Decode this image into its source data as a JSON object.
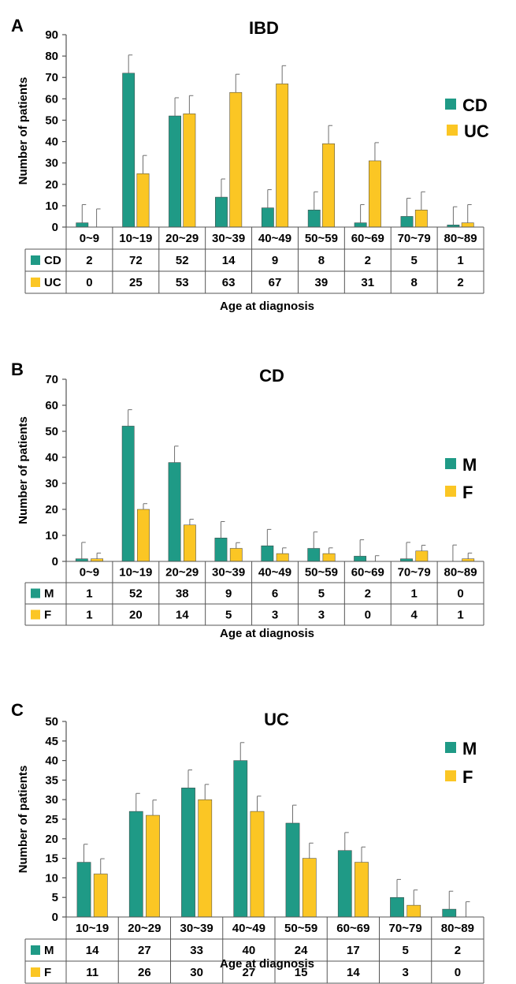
{
  "colors": {
    "series1": "#1f9a86",
    "series2": "#fbc624",
    "axis": "#555555",
    "error": "#6f6f6f"
  },
  "chart_data": [
    {
      "panel": "A",
      "type": "bar",
      "title": "IBD",
      "ylabel": "Number of patients",
      "xlabel": "Age at diagnosis",
      "ylim": [
        0,
        90
      ],
      "yticks": [
        0,
        10,
        20,
        30,
        40,
        50,
        60,
        70,
        80,
        90
      ],
      "categories": [
        "0~9",
        "10~19",
        "20~29",
        "30~39",
        "40~49",
        "50~59",
        "60~69",
        "70~79",
        "80~89"
      ],
      "series": [
        {
          "name": "CD",
          "values": [
            2,
            72,
            52,
            14,
            9,
            8,
            2,
            5,
            1
          ],
          "error": [
            8.5,
            8.5,
            8.5,
            8.5,
            8.5,
            8.5,
            8.5,
            8.5,
            8.5
          ]
        },
        {
          "name": "UC",
          "values": [
            0,
            25,
            53,
            63,
            67,
            39,
            31,
            8,
            2
          ],
          "error": [
            8.5,
            8.5,
            8.5,
            8.5,
            8.5,
            8.5,
            8.5,
            8.5,
            8.5
          ]
        }
      ]
    },
    {
      "panel": "B",
      "type": "bar",
      "title": "CD",
      "ylabel": "Number of patients",
      "xlabel": "Age at diagnosis",
      "ylim": [
        0,
        70
      ],
      "yticks": [
        0,
        10,
        20,
        30,
        40,
        50,
        60,
        70
      ],
      "categories": [
        "0~9",
        "10~19",
        "20~29",
        "30~39",
        "40~49",
        "50~59",
        "60~69",
        "70~79",
        "80~89"
      ],
      "series": [
        {
          "name": "M",
          "values": [
            1,
            52,
            38,
            9,
            6,
            5,
            2,
            1,
            0
          ],
          "error": [
            6.3,
            6.3,
            6.3,
            6.3,
            6.3,
            6.3,
            6.3,
            6.3,
            6.3
          ]
        },
        {
          "name": "F",
          "values": [
            1,
            20,
            14,
            5,
            3,
            3,
            0,
            4,
            1
          ],
          "error": [
            2.2,
            2.2,
            2.2,
            2.2,
            2.2,
            2.2,
            2.2,
            2.2,
            2.2
          ]
        }
      ]
    },
    {
      "panel": "C",
      "type": "bar",
      "title": "UC",
      "ylabel": "Number of patients",
      "xlabel": "Age at diagnosis",
      "ylim": [
        0,
        50
      ],
      "yticks": [
        0,
        5,
        10,
        15,
        20,
        25,
        30,
        35,
        40,
        45,
        50
      ],
      "categories": [
        "10~19",
        "20~29",
        "30~39",
        "40~49",
        "50~59",
        "60~69",
        "70~79",
        "80~89"
      ],
      "series": [
        {
          "name": "M",
          "values": [
            14,
            27,
            33,
            40,
            24,
            17,
            5,
            2
          ],
          "error": [
            4.6,
            4.6,
            4.6,
            4.6,
            4.6,
            4.6,
            4.6,
            4.6
          ]
        },
        {
          "name": "F",
          "values": [
            11,
            26,
            30,
            27,
            15,
            14,
            3,
            0
          ],
          "error": [
            3.9,
            3.9,
            3.9,
            3.9,
            3.9,
            3.9,
            3.9,
            3.9
          ]
        }
      ]
    }
  ]
}
